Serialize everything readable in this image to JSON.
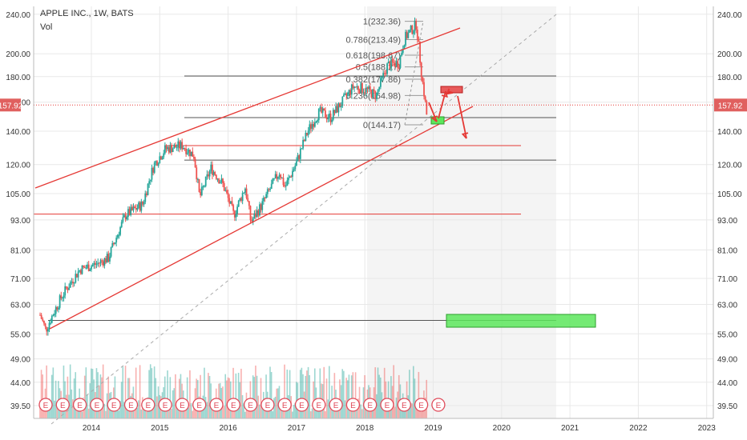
{
  "header": {
    "symbol_line": "APPLE INC., 1W, BATS",
    "volume_label": "Vol"
  },
  "chart_data": {
    "type": "candlestick",
    "symbol": "APPLE INC.",
    "interval": "1W",
    "exchange": "BATS",
    "y_scale": "log",
    "ylim": [
      38.5,
      247
    ],
    "y_ticks": [
      "240.00",
      "200.00",
      "180.00",
      "160.00",
      "140.00",
      "120.00",
      "105.00",
      "93.00",
      "81.00",
      "71.00",
      "63.00",
      "55.00",
      "49.00",
      "44.00",
      "39.50"
    ],
    "x_ticks": [
      "2014",
      "2015",
      "2016",
      "2017",
      "2018",
      "2019",
      "2020",
      "2021",
      "2022",
      "2023"
    ],
    "current_price": "157.92",
    "price_path": [
      [
        "2013-04",
        60
      ],
      [
        "2013-05",
        56
      ],
      [
        "2013-08",
        66
      ],
      [
        "2013-11",
        74
      ],
      [
        "2014-02",
        76
      ],
      [
        "2014-04",
        78
      ],
      [
        "2014-07",
        95
      ],
      [
        "2014-10",
        100
      ],
      [
        "2014-12",
        120
      ],
      [
        "2015-02",
        129
      ],
      [
        "2015-05",
        131
      ],
      [
        "2015-07",
        125
      ],
      [
        "2015-08",
        103
      ],
      [
        "2015-10",
        118
      ],
      [
        "2015-12",
        110
      ],
      [
        "2016-02",
        95
      ],
      [
        "2016-04",
        108
      ],
      [
        "2016-05",
        92
      ],
      [
        "2016-07",
        100
      ],
      [
        "2016-10",
        116
      ],
      [
        "2016-11",
        108
      ],
      [
        "2017-01",
        121
      ],
      [
        "2017-03",
        140
      ],
      [
        "2017-05",
        153
      ],
      [
        "2017-07",
        149
      ],
      [
        "2017-09",
        160
      ],
      [
        "2017-11",
        172
      ],
      [
        "2018-01",
        170
      ],
      [
        "2018-03",
        165
      ],
      [
        "2018-05",
        190
      ],
      [
        "2018-07",
        192
      ],
      [
        "2018-08",
        215
      ],
      [
        "2018-10",
        229
      ],
      [
        "2018-11",
        180
      ],
      [
        "2018-12",
        146
      ]
    ],
    "fib_levels": [
      {
        "label": "1(232.36)",
        "price": 232.36
      },
      {
        "label": "0.786(213.49)",
        "price": 213.49
      },
      {
        "label": "0.618(198.67)",
        "price": 198.67
      },
      {
        "label": "0.5(188.27)",
        "price": 188.27
      },
      {
        "label": "0.382(177.86)",
        "price": 177.86
      },
      {
        "label": "0.236(164.98)",
        "price": 164.98
      },
      {
        "label": "0(144.17)",
        "price": 144.17
      }
    ],
    "horizontal_lines": [
      {
        "price": 180.5,
        "color": "#555555"
      },
      {
        "price": 149,
        "color": "#555555"
      },
      {
        "price": 122.5,
        "color": "#555555"
      },
      {
        "price": 131,
        "color": "#e53935"
      },
      {
        "price": 95.5,
        "color": "#e53935"
      },
      {
        "price": 58.5,
        "color": "#555555"
      }
    ],
    "earnings_marker": "E",
    "earnings_count": 24,
    "colors": {
      "up": "#26a69a",
      "down": "#ef5350",
      "trend": "#e53935",
      "price_line": "#e53935",
      "price_tag_bg": "#e0605f",
      "green_box": "#5ce65c",
      "red_box": "#e85a5a",
      "grid": "#e8e8e8",
      "shaded": "#f5f5f5"
    }
  }
}
